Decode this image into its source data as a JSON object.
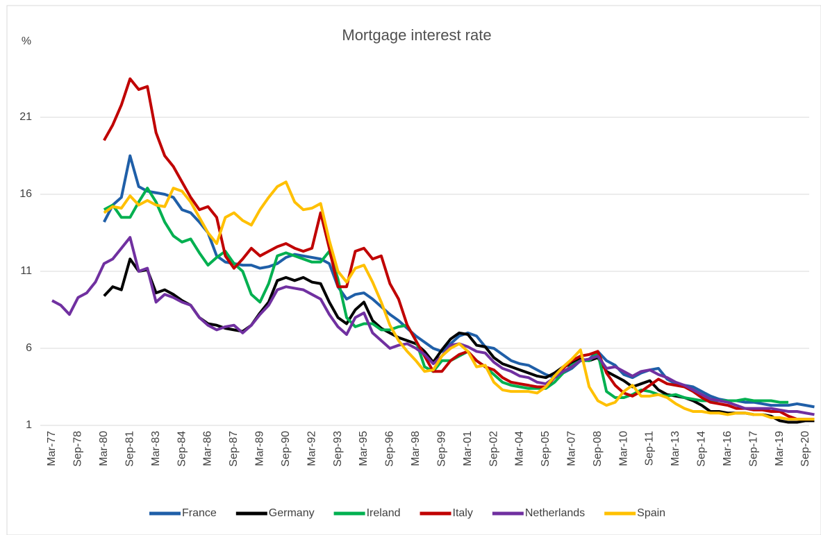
{
  "chart_data": {
    "type": "line",
    "title": "Mortgage interest rate",
    "y_label": "%",
    "categories": [
      "Mar-77",
      null,
      null,
      "Sep-78",
      null,
      null,
      "Mar-80",
      null,
      null,
      "Sep-81",
      null,
      null,
      "Mar-83",
      null,
      null,
      "Sep-84",
      null,
      null,
      "Mar-86",
      null,
      null,
      "Sep-87",
      null,
      null,
      "Mar-89",
      null,
      null,
      "Sep-90",
      null,
      null,
      "Mar-92",
      null,
      null,
      "Sep-93",
      null,
      null,
      "Mar-95",
      null,
      null,
      "Sep-96",
      null,
      null,
      "Mar-98",
      null,
      null,
      "Sep-99",
      null,
      null,
      "Mar-01",
      null,
      null,
      "Sep-02",
      null,
      null,
      "Mar-04",
      null,
      null,
      "Sep-05",
      null,
      null,
      "Mar-07",
      null,
      null,
      "Sep-08",
      null,
      null,
      "Mar-10",
      null,
      null,
      "Sep-11",
      null,
      null,
      "Mar-13",
      null,
      null,
      "Sep-14",
      null,
      null,
      "Mar-16",
      null,
      null,
      "Sep-17",
      null,
      null,
      "Mar-19",
      null,
      null,
      "Sep-20",
      null
    ],
    "ylim": [
      1,
      26
    ],
    "yticks": [
      1,
      6,
      11,
      16,
      21
    ],
    "grid": true,
    "legend": "bottom",
    "series": [
      {
        "name": "France",
        "color": "#1f5fa8",
        "values": [
          null,
          null,
          null,
          null,
          null,
          null,
          14.2,
          15.3,
          15.8,
          18.5,
          16.5,
          16.2,
          16.1,
          16.0,
          15.8,
          15.0,
          14.8,
          14.2,
          13.5,
          12.0,
          11.6,
          11.5,
          11.4,
          11.4,
          11.2,
          11.3,
          11.5,
          11.9,
          12.1,
          12.0,
          11.9,
          11.8,
          11.5,
          10.0,
          9.2,
          9.5,
          9.6,
          9.2,
          8.7,
          8.2,
          7.8,
          7.3,
          6.8,
          6.4,
          6.0,
          5.8,
          6.3,
          6.8,
          7.0,
          6.8,
          6.1,
          6.0,
          5.6,
          5.2,
          5.0,
          4.9,
          4.6,
          4.3,
          4.1,
          4.4,
          4.7,
          5.2,
          5.3,
          5.8,
          5.2,
          4.9,
          4.3,
          4.1,
          4.4,
          4.6,
          4.7,
          4.0,
          3.7,
          3.6,
          3.5,
          3.2,
          2.9,
          2.7,
          2.6,
          2.6,
          2.5,
          2.5,
          2.4,
          2.3,
          2.3,
          2.3,
          2.4,
          2.3,
          2.2
        ]
      },
      {
        "name": "Germany",
        "color": "#000000",
        "values": [
          null,
          null,
          null,
          null,
          null,
          null,
          9.4,
          10,
          9.8,
          11.8,
          11,
          11.1,
          9.6,
          9.8,
          9.5,
          9.1,
          8.8,
          8,
          7.6,
          7.5,
          7.3,
          7.2,
          7.1,
          7.5,
          8.3,
          9,
          10.4,
          10.6,
          10.4,
          10.6,
          10.3,
          10.2,
          9,
          8,
          7.6,
          8.5,
          9,
          7.8,
          7.3,
          7,
          6.7,
          6.5,
          6.3,
          5.8,
          5.1,
          5.9,
          6.6,
          7,
          6.9,
          6.2,
          6.1,
          5.4,
          5,
          4.8,
          4.6,
          4.4,
          4.2,
          4.1,
          4.4,
          4.8,
          5,
          5.3,
          5.2,
          5.4,
          4.5,
          4.2,
          3.9,
          3.5,
          3.7,
          3.9,
          3.3,
          3,
          2.9,
          2.8,
          2.6,
          2.3,
          1.9,
          1.9,
          1.8,
          1.8,
          1.8,
          1.7,
          1.7,
          1.6,
          1.3,
          1.2,
          1.2,
          1.3,
          1.3
        ]
      },
      {
        "name": "Ireland",
        "color": "#00b050",
        "values": [
          null,
          null,
          null,
          null,
          null,
          null,
          15,
          15.3,
          14.5,
          14.5,
          15.5,
          16.4,
          15.5,
          14.2,
          13.3,
          12.9,
          13.1,
          12.2,
          11.4,
          11.9,
          12.3,
          11.5,
          11,
          9.5,
          9,
          10.2,
          12,
          12.2,
          12,
          11.8,
          11.6,
          11.6,
          12.3,
          10.5,
          8,
          7.4,
          7.6,
          7.6,
          7.2,
          7.2,
          7.4,
          7.5,
          6.5,
          4.8,
          4.5,
          5.2,
          5.2,
          5.5,
          5.8,
          5.2,
          4.8,
          4.3,
          3.8,
          3.6,
          3.5,
          3.4,
          3.4,
          3.4,
          3.8,
          4.4,
          4.9,
          5.2,
          5.2,
          5.7,
          3.2,
          2.8,
          2.8,
          3.0,
          3.3,
          3.2,
          3.0,
          2.9,
          3.0,
          2.8,
          2.7,
          2.6,
          2.6,
          2.6,
          2.6,
          2.6,
          2.7,
          2.6,
          2.6,
          2.6,
          2.5,
          2.5,
          null,
          null,
          null
        ]
      },
      {
        "name": "Italy",
        "color": "#c00000",
        "values": [
          null,
          null,
          null,
          null,
          null,
          null,
          19.5,
          20.5,
          21.8,
          23.5,
          22.8,
          23,
          20,
          18.5,
          17.8,
          16.8,
          15.8,
          15,
          15.2,
          14.5,
          12,
          11.2,
          11.8,
          12.5,
          12,
          12.3,
          12.6,
          12.8,
          12.5,
          12.3,
          12.5,
          14.8,
          12.5,
          10,
          10,
          12.3,
          12.5,
          11.8,
          12,
          10.2,
          9.2,
          7.5,
          6.5,
          5.5,
          4.5,
          4.5,
          5.2,
          5.6,
          5.8,
          5.2,
          4.8,
          4.6,
          4.1,
          3.8,
          3.7,
          3.6,
          3.5,
          3.5,
          4.1,
          4.7,
          5.2,
          5.5,
          5.6,
          5.8,
          4.4,
          3.6,
          3.1,
          2.9,
          3.2,
          3.6,
          4,
          3.7,
          3.6,
          3.5,
          3.2,
          2.8,
          2.5,
          2.4,
          2.3,
          2.1,
          2.1,
          2,
          2,
          1.9,
          1.9,
          1.6,
          1.4,
          1.4,
          1.4
        ]
      },
      {
        "name": "Netherlands",
        "color": "#7030a0",
        "values": [
          9.1,
          8.8,
          8.2,
          9.3,
          9.6,
          10.3,
          11.5,
          11.8,
          12.5,
          13.2,
          11,
          11.2,
          9,
          9.5,
          9.3,
          9,
          8.8,
          8,
          7.5,
          7.2,
          7.4,
          7.5,
          7,
          7.5,
          8.2,
          8.8,
          9.8,
          10,
          9.9,
          9.8,
          9.5,
          9.2,
          8.2,
          7.4,
          6.9,
          8,
          8.3,
          7,
          6.5,
          6,
          6.2,
          6.3,
          6,
          5.6,
          5,
          5.5,
          6.2,
          6.3,
          6.1,
          5.8,
          5.7,
          5.1,
          4.7,
          4.5,
          4.2,
          4.1,
          3.8,
          3.7,
          4.1,
          4.5,
          4.8,
          5.2,
          5.3,
          5.5,
          4.7,
          4.8,
          4.5,
          4.2,
          4.5,
          4.6,
          4.3,
          4.1,
          3.8,
          3.6,
          3.3,
          3,
          2.7,
          2.6,
          2.5,
          2.3,
          2.1,
          2.1,
          2.1,
          2.1,
          2,
          1.9,
          1.9,
          1.8,
          1.7
        ]
      },
      {
        "name": "Spain",
        "color": "#ffc000",
        "values": [
          null,
          null,
          null,
          null,
          null,
          null,
          14.8,
          15.2,
          15.1,
          15.9,
          15.3,
          15.6,
          15.3,
          15.2,
          16.4,
          16.2,
          15.5,
          14.5,
          13.5,
          12.8,
          14.5,
          14.8,
          14.3,
          14,
          15,
          15.8,
          16.5,
          16.8,
          15.5,
          15,
          15.1,
          15.4,
          13,
          11,
          10.3,
          11.2,
          11.4,
          10.3,
          9,
          7.5,
          6.5,
          5.8,
          5.2,
          4.5,
          4.6,
          5.5,
          6,
          6.3,
          5.8,
          4.8,
          4.9,
          3.8,
          3.3,
          3.2,
          3.2,
          3.2,
          3.1,
          3.5,
          4.2,
          4.8,
          5.3,
          5.9,
          3.5,
          2.6,
          2.3,
          2.5,
          3.2,
          3.6,
          2.9,
          2.9,
          3,
          2.8,
          2.4,
          2.1,
          1.9,
          1.9,
          1.8,
          1.8,
          1.7,
          1.8,
          1.8,
          1.7,
          1.7,
          1.5,
          1.5,
          1.4,
          1.4,
          1.4,
          1.4
        ]
      }
    ]
  }
}
